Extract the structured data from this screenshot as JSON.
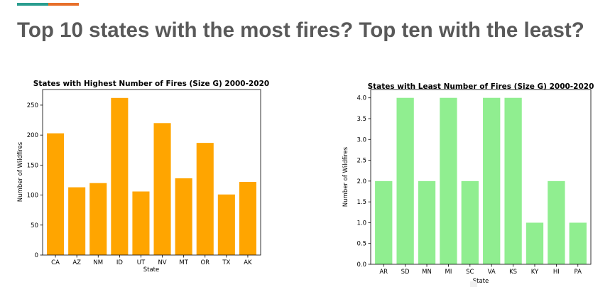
{
  "slide": {
    "title": "Top 10 states with the most fires? Top ten with the least?",
    "accent_colors": [
      "#2a9d8f",
      "#e76f2a"
    ]
  },
  "chart_data": [
    {
      "type": "bar",
      "title": "States with Highest Number of Fires (Size G) 2000-2020",
      "xlabel": "State",
      "ylabel": "Number of Wildfires",
      "categories": [
        "CA",
        "AZ",
        "NM",
        "ID",
        "UT",
        "NV",
        "MT",
        "OR",
        "TX",
        "AK"
      ],
      "values": [
        203,
        113,
        120,
        262,
        106,
        220,
        128,
        187,
        101,
        122
      ],
      "ylim": [
        0,
        276
      ],
      "yticks": [
        0,
        50,
        100,
        150,
        200,
        250
      ],
      "color": "#ffa500",
      "grid": false
    },
    {
      "type": "bar",
      "title": "States with Least Number of Fires (Size G) 2000-2020",
      "xlabel": "State",
      "ylabel": "Number of Wildfires",
      "categories": [
        "AR",
        "SD",
        "MN",
        "MI",
        "SC",
        "VA",
        "KS",
        "KY",
        "HI",
        "PA"
      ],
      "values": [
        2,
        4,
        2,
        4,
        2,
        4,
        4,
        1,
        2,
        1
      ],
      "ylim": [
        0,
        4.2
      ],
      "yticks": [
        0.0,
        0.5,
        1.0,
        1.5,
        2.0,
        2.5,
        3.0,
        3.5,
        4.0
      ],
      "ytick_format": "1dp",
      "color": "#90ee90",
      "grid": false
    }
  ]
}
